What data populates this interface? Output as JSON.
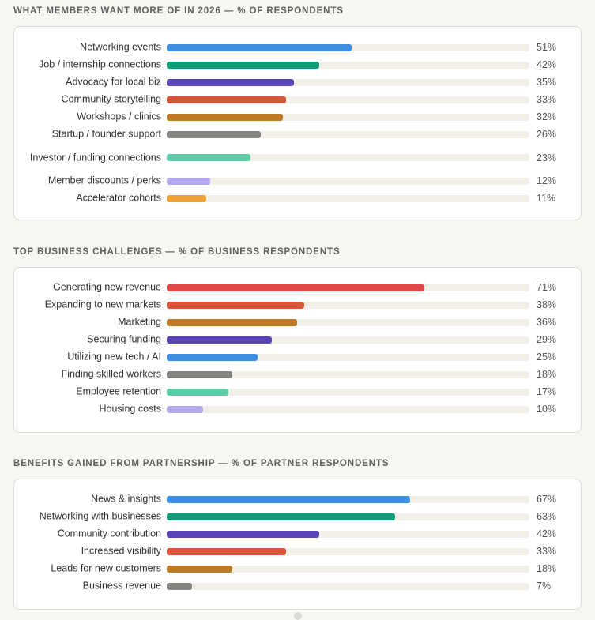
{
  "chart_data": [
    {
      "type": "bar",
      "title": "WHAT MEMBERS WANT MORE OF IN 2026 — % OF RESPONDENTS",
      "xlim": [
        0,
        100
      ],
      "unit": "%",
      "bars": [
        {
          "label": "Networking events",
          "value": 51,
          "display": "51%",
          "color": "#3b8ee0"
        },
        {
          "label": "Job / internship connections",
          "value": 42,
          "display": "42%",
          "color": "#0e9e7a"
        },
        {
          "label": "Advocacy for local biz",
          "value": 35,
          "display": "35%",
          "color": "#5b45b6"
        },
        {
          "label": "Community storytelling",
          "value": 33,
          "display": "33%",
          "color": "#d9553a"
        },
        {
          "label": "Workshops / clinics",
          "value": 32,
          "display": "32%",
          "color": "#bd7a26"
        },
        {
          "label": "Startup / founder support",
          "value": 26,
          "display": "26%",
          "color": "#858480"
        },
        {
          "label": "Investor / funding connections",
          "value": 23,
          "display": "23%",
          "color": "#5ccea6"
        },
        {
          "label": "Member discounts / perks",
          "value": 12,
          "display": "12%",
          "color": "#b3aaed"
        },
        {
          "label": "Accelerator cohorts",
          "value": 11,
          "display": "11%",
          "color": "#eea133"
        }
      ]
    },
    {
      "type": "bar",
      "title": "TOP BUSINESS CHALLENGES — % OF BUSINESS RESPONDENTS",
      "xlim": [
        0,
        100
      ],
      "unit": "%",
      "bars": [
        {
          "label": "Generating new revenue",
          "value": 71,
          "display": "71%",
          "color": "#e04848"
        },
        {
          "label": "Expanding to new markets",
          "value": 38,
          "display": "38%",
          "color": "#d9553a"
        },
        {
          "label": "Marketing",
          "value": 36,
          "display": "36%",
          "color": "#bd7a26"
        },
        {
          "label": "Securing funding",
          "value": 29,
          "display": "29%",
          "color": "#5b45b6"
        },
        {
          "label": "Utilizing new tech / AI",
          "value": 25,
          "display": "25%",
          "color": "#3b8ee0"
        },
        {
          "label": "Finding skilled workers",
          "value": 18,
          "display": "18%",
          "color": "#858480"
        },
        {
          "label": "Employee retention",
          "value": 17,
          "display": "17%",
          "color": "#5ccea6"
        },
        {
          "label": "Housing costs",
          "value": 10,
          "display": "10%",
          "color": "#b3aaed"
        }
      ]
    },
    {
      "type": "bar",
      "title": "BENEFITS GAINED FROM PARTNERSHIP — % OF PARTNER RESPONDENTS",
      "xlim": [
        0,
        100
      ],
      "unit": "%",
      "bars": [
        {
          "label": "News & insights",
          "value": 67,
          "display": "67%",
          "color": "#3b8ee0"
        },
        {
          "label": "Networking with businesses",
          "value": 63,
          "display": "63%",
          "color": "#0e9e7a"
        },
        {
          "label": "Community contribution",
          "value": 42,
          "display": "42%",
          "color": "#5b45b6"
        },
        {
          "label": "Increased visibility",
          "value": 33,
          "display": "33%",
          "color": "#d9553a"
        },
        {
          "label": "Leads for new customers",
          "value": 18,
          "display": "18%",
          "color": "#bd7a26"
        },
        {
          "label": "Business revenue",
          "value": 7,
          "display": "7%",
          "color": "#858480"
        }
      ]
    }
  ]
}
